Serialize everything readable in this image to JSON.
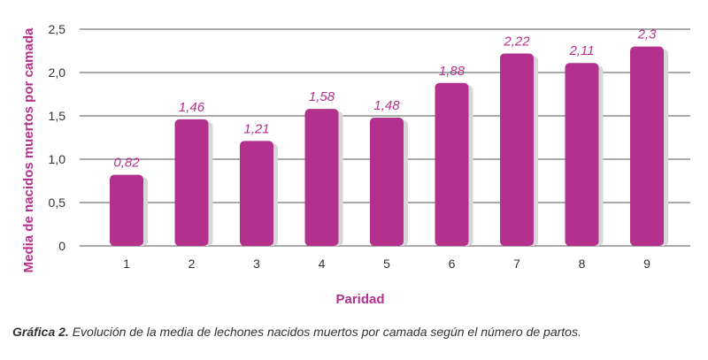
{
  "chart_data": {
    "type": "bar",
    "categories": [
      "1",
      "2",
      "3",
      "4",
      "5",
      "6",
      "7",
      "8",
      "9"
    ],
    "values": [
      0.82,
      1.46,
      1.21,
      1.58,
      1.48,
      1.88,
      2.22,
      2.11,
      2.3
    ],
    "value_labels": [
      "0,82",
      "1,46",
      "1,21",
      "1,58",
      "1,48",
      "1,88",
      "2,22",
      "2,11",
      "2,3"
    ],
    "yticks": [
      0,
      0.5,
      1.0,
      1.5,
      2.0,
      2.5
    ],
    "ytick_labels": [
      "0",
      "0,5",
      "1,0",
      "1,5",
      "2,0",
      "2,5"
    ],
    "ylim": [
      0,
      2.5
    ],
    "xlabel": "Paridad",
    "ylabel": "Media de nacidos muertos por camada",
    "grid": true,
    "bar_color": "#b3318c",
    "shadow_color": "#d7d7d7"
  },
  "caption": {
    "label": "Gráfica 2.",
    "text": " Evolución de la media de lechones nacidos muertos por camada según el número de partos."
  }
}
